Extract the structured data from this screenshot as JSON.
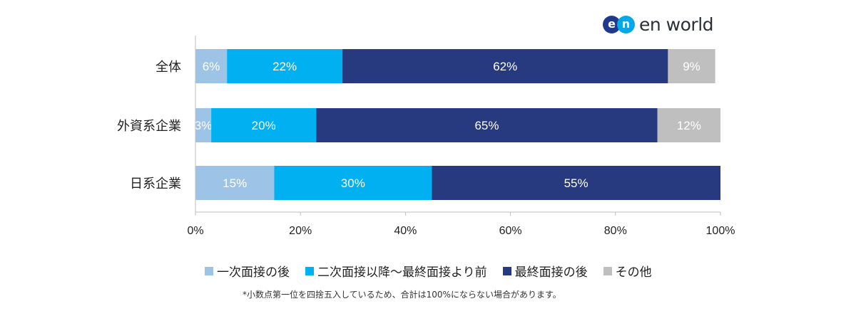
{
  "logo": {
    "badge": [
      "e",
      "n"
    ],
    "text": "en world"
  },
  "chart_data": {
    "type": "bar",
    "orientation": "horizontal",
    "stacked": true,
    "categories": [
      "全体",
      "外資系企業",
      "日系企業"
    ],
    "series": [
      {
        "name": "一次面接の後",
        "values": [
          6,
          3,
          15
        ],
        "labels": [
          "6%",
          "3%",
          "15%"
        ],
        "color": "#9dc3e6"
      },
      {
        "name": "二次面接以降〜最終面接より前",
        "values": [
          22,
          20,
          30
        ],
        "labels": [
          "22%",
          "20%",
          "30%"
        ],
        "color": "#00b0f0"
      },
      {
        "name": "最終面接の後",
        "values": [
          62,
          65,
          55
        ],
        "labels": [
          "62%",
          "65%",
          "55%"
        ],
        "color": "#283a7f"
      },
      {
        "name": "その他",
        "values": [
          9,
          12,
          0
        ],
        "labels": [
          "9%",
          "12%",
          ""
        ],
        "color": "#bfbfbf"
      }
    ],
    "xlim": [
      0,
      100
    ],
    "xticks": [
      0,
      20,
      40,
      60,
      80,
      100
    ],
    "xtick_labels": [
      "0%",
      "20%",
      "40%",
      "60%",
      "80%",
      "100%"
    ],
    "grid": false,
    "legend_position": "bottom"
  },
  "footnote": "*小数点第一位を四捨五入しているため、合計は100%にならない場合があります。"
}
